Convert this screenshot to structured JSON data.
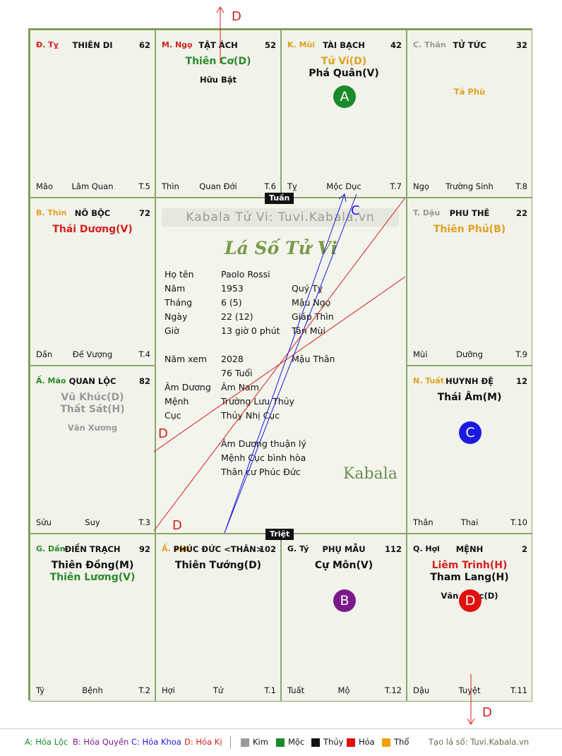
{
  "watermark": "Kabala Tử Vi: Tuvi.Kabala.vn",
  "chart_title": "Lá Số Tử Vi",
  "tuan_label": "Tuần",
  "triet_label": "Triệt",
  "brand": "Kabala",
  "cells": [
    {
      "can": "Đ. Tỵ",
      "can_color": "#d32020",
      "palace": "THIÊN DI",
      "num": "62",
      "main": [],
      "minor": [],
      "left": "Mão",
      "mid": "Lâm Quan",
      "right": "T.5",
      "badge": null
    },
    {
      "can": "M. Ngọ",
      "can_color": "#d32020",
      "palace": "TẬT ÁCH",
      "num": "52",
      "main": [
        {
          "t": "Thiên Cơ(D)",
          "c": "#2a8a2a"
        }
      ],
      "minor": [
        {
          "t": "Hữu Bật",
          "c": "#111"
        }
      ],
      "left": "Thìn",
      "mid": "Quan Đới",
      "right": "T.6",
      "badge": null
    },
    {
      "can": "K. Mùi",
      "can_color": "#e0a020",
      "palace": "TÀI BẠCH",
      "num": "42",
      "main": [
        {
          "t": "Tử Vi(D)",
          "c": "#e0a020"
        },
        {
          "t": "Phá Quân(V)",
          "c": "#111"
        }
      ],
      "minor": [],
      "left": "Tỵ",
      "mid": "Mộc Dục",
      "right": "T.7",
      "badge": {
        "l": "A",
        "c": "#1a8a2a"
      }
    },
    {
      "can": "C. Thân",
      "can_color": "#999999",
      "palace": "TỬ TỨC",
      "num": "32",
      "main": [],
      "minor": [
        {
          "t": "Tả Phù",
          "c": "#e0a020"
        }
      ],
      "left": "Ngọ",
      "mid": "Trường Sinh",
      "right": "T.8",
      "badge": null
    },
    {
      "can": "B. Thìn",
      "can_color": "#e0a020",
      "palace": "NÔ BỘC",
      "num": "72",
      "main": [
        {
          "t": "Thái Dương(V)",
          "c": "#d32020"
        }
      ],
      "minor": [],
      "left": "Dần",
      "mid": "Đế Vượng",
      "right": "T.4",
      "badge": null
    },
    {
      "can": "T. Dậu",
      "can_color": "#999999",
      "palace": "PHU THÊ",
      "num": "22",
      "main": [
        {
          "t": "Thiên Phủ(B)",
          "c": "#e0a020"
        }
      ],
      "minor": [],
      "left": "Mùi",
      "mid": "Dưỡng",
      "right": "T.9",
      "badge": null
    },
    {
      "can": "Ấ. Mão",
      "can_color": "#2a8a2a",
      "palace": "QUAN LỘC",
      "num": "82",
      "main": [
        {
          "t": "Vũ Khúc(D)",
          "c": "#999999"
        },
        {
          "t": "Thất Sát(H)",
          "c": "#999999"
        }
      ],
      "minor": [
        {
          "t": "Văn Xương",
          "c": "#999999"
        }
      ],
      "left": "Sửu",
      "mid": "Suy",
      "right": "T.3",
      "badge": null
    },
    {
      "can": "N. Tuất",
      "can_color": "#e0a020",
      "palace": "HUYNH ĐỆ",
      "num": "12",
      "main": [
        {
          "t": "Thái Âm(M)",
          "c": "#111"
        }
      ],
      "minor": [],
      "left": "Thân",
      "mid": "Thai",
      "right": "T.10",
      "badge": {
        "l": "C",
        "c": "#1a1ae0"
      }
    },
    {
      "can": "G. Dần",
      "can_color": "#2a8a2a",
      "palace": "ĐIỀN TRẠCH",
      "num": "92",
      "main": [
        {
          "t": "Thiên Đồng(M)",
          "c": "#111"
        },
        {
          "t": "Thiên Lương(V)",
          "c": "#2a8a2a"
        }
      ],
      "minor": [],
      "left": "Tý",
      "mid": "Bệnh",
      "right": "T.2",
      "badge": null
    },
    {
      "can": "Ấ. Sửu",
      "can_color": "#e0a020",
      "palace": "PHÚC ĐỨC <THÂN>",
      "num": "102",
      "main": [
        {
          "t": "Thiên Tướng(D)",
          "c": "#111"
        }
      ],
      "minor": [],
      "left": "Hợi",
      "mid": "Tử",
      "right": "T.1",
      "badge": null
    },
    {
      "can": "G. Tý",
      "can_color": "#111",
      "palace": "PHỤ MẪU",
      "num": "112",
      "main": [
        {
          "t": "Cự Môn(V)",
          "c": "#111"
        }
      ],
      "minor": [],
      "left": "Tuất",
      "mid": "Mộ",
      "right": "T.12",
      "badge": {
        "l": "B",
        "c": "#7a1a8a"
      }
    },
    {
      "can": "Q. Hợi",
      "can_color": "#111",
      "palace": "MỆNH",
      "num": "2",
      "main": [
        {
          "t": "Liêm Trinh(H)",
          "c": "#d32020"
        },
        {
          "t": "Tham Lang(H)",
          "c": "#111"
        }
      ],
      "minor": [
        {
          "t": "Văn Khúc(D)",
          "c": "#111"
        }
      ],
      "left": "Dậu",
      "mid": "Tuyệt",
      "right": "T.11",
      "badge": {
        "l": "D",
        "c": "#e01010"
      }
    }
  ],
  "info": {
    "rows": [
      {
        "k": "Họ tên",
        "v": "Paolo Rossi",
        "w": ""
      },
      {
        "k": "Năm",
        "v": "1953",
        "w": "Quý Tỵ"
      },
      {
        "k": "Tháng",
        "v": "6  (5)",
        "w": "Mậu Ngọ"
      },
      {
        "k": "Ngày",
        "v": "22  (12)",
        "w": "Giáp Thìn"
      },
      {
        "k": "Giờ",
        "v": "13 giờ 0 phút",
        "w": "Tân Mùi"
      }
    ],
    "rows2": [
      {
        "k": "Năm xem",
        "v": "2028",
        "w": "Mậu Thân"
      },
      {
        "k": "",
        "v": "76 Tuổi",
        "w": ""
      },
      {
        "k": "Âm Dương",
        "v": "Âm Nam",
        "w": ""
      },
      {
        "k": "Mệnh",
        "v": "Trường Lưu Thủy",
        "w": ""
      },
      {
        "k": "Cục",
        "v": "Thủy Nhị Cục",
        "w": ""
      }
    ],
    "notes": [
      "Âm Dương thuận lý",
      "Mệnh Cục bình hòa",
      "Thân cư Phúc Đức"
    ]
  },
  "arrows": {
    "d_label": "D",
    "c_label": "C"
  },
  "legend": {
    "a": "A: Hóa Lộc",
    "b": "B: Hóa Quyền",
    "c": "C: Hóa Khoa",
    "d": "D: Hóa Kị",
    "elements": [
      {
        "n": "Kim",
        "c": "#999999"
      },
      {
        "n": "Mộc",
        "c": "#1a8a2a"
      },
      {
        "n": "Thủy",
        "c": "#111111"
      },
      {
        "n": "Hỏa",
        "c": "#e01010"
      },
      {
        "n": "Thổ",
        "c": "#f0a000"
      }
    ],
    "footer": "Tạo lá số: Tuvi.Kabala.vn"
  }
}
